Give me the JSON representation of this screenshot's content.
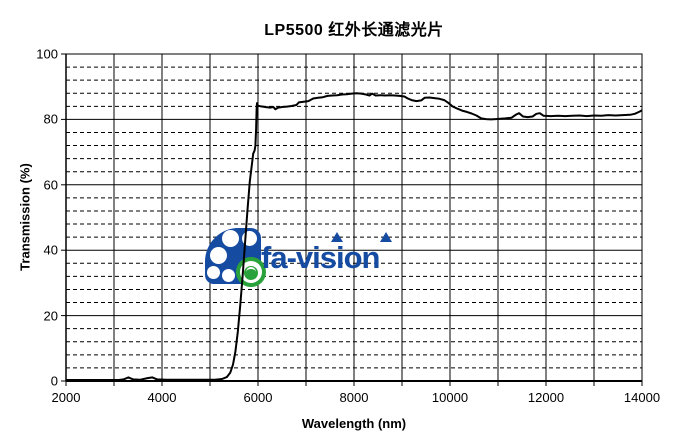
{
  "title": "LP5500 红外长通滤光片",
  "watermark": {
    "text": "fa-vision",
    "colors": {
      "blue": "#164ba2",
      "green": "#2aa23c"
    }
  },
  "chart_data": {
    "type": "line",
    "title": "LP5500 红外长通滤光片",
    "xlabel": "Wavelength (nm)",
    "ylabel": "Transmission (%)",
    "xlim": [
      2000,
      14000
    ],
    "ylim": [
      0,
      100
    ],
    "x_label_ticks": [
      {
        "value": 2000,
        "label": "2000"
      },
      {
        "value": 4000,
        "label": "4000"
      },
      {
        "value": 6000,
        "label": "6000"
      },
      {
        "value": 8000,
        "label": "8000"
      },
      {
        "value": 10000,
        "label": "10000"
      },
      {
        "value": 12000,
        "label": "12000"
      },
      {
        "value": 14000,
        "label": "14000"
      }
    ],
    "x_minor_step": 1000,
    "y_label_ticks": [
      {
        "value": 0,
        "label": "0"
      },
      {
        "value": 20,
        "label": "20"
      },
      {
        "value": 40,
        "label": "40"
      },
      {
        "value": 60,
        "label": "60"
      },
      {
        "value": 80,
        "label": "80"
      },
      {
        "value": 100,
        "label": "100"
      }
    ],
    "y_major_step": 20,
    "y_minor_step": 4,
    "grid": {
      "x_solid_every_nm": 1000,
      "y_solid_every": 20,
      "y_dashed_every": 4
    },
    "line_color": "#000000",
    "series": [
      {
        "name": "transmission",
        "points": [
          [
            2000,
            0.3
          ],
          [
            2400,
            0.3
          ],
          [
            2800,
            0.3
          ],
          [
            3100,
            0.3
          ],
          [
            3200,
            0.5
          ],
          [
            3300,
            1.1
          ],
          [
            3400,
            0.5
          ],
          [
            3550,
            0.4
          ],
          [
            3700,
            0.9
          ],
          [
            3800,
            1.1
          ],
          [
            3900,
            0.5
          ],
          [
            4100,
            0.4
          ],
          [
            4400,
            0.4
          ],
          [
            4800,
            0.4
          ],
          [
            5100,
            0.4
          ],
          [
            5250,
            0.6
          ],
          [
            5350,
            1.2
          ],
          [
            5420,
            2.5
          ],
          [
            5480,
            5
          ],
          [
            5530,
            9
          ],
          [
            5580,
            15
          ],
          [
            5630,
            23
          ],
          [
            5680,
            32
          ],
          [
            5730,
            42
          ],
          [
            5780,
            52
          ],
          [
            5830,
            61
          ],
          [
            5870,
            66
          ],
          [
            5900,
            69.5
          ],
          [
            5930,
            70.5
          ],
          [
            5945,
            72
          ],
          [
            5960,
            77
          ],
          [
            5970,
            83
          ],
          [
            5980,
            85
          ],
          [
            6000,
            84.2
          ],
          [
            6050,
            84
          ],
          [
            6150,
            83.8
          ],
          [
            6250,
            83.6
          ],
          [
            6320,
            83.8
          ],
          [
            6360,
            83.1
          ],
          [
            6420,
            83.6
          ],
          [
            6500,
            83.8
          ],
          [
            6600,
            83.9
          ],
          [
            6700,
            84.1
          ],
          [
            6800,
            84.4
          ],
          [
            6850,
            85.2
          ],
          [
            6950,
            85.4
          ],
          [
            7050,
            85.6
          ],
          [
            7150,
            86.4
          ],
          [
            7250,
            86.6
          ],
          [
            7350,
            86.8
          ],
          [
            7450,
            87.2
          ],
          [
            7550,
            87.3
          ],
          [
            7650,
            87.4
          ],
          [
            7750,
            87.6
          ],
          [
            7850,
            87.7
          ],
          [
            7950,
            87.9
          ],
          [
            8050,
            88
          ],
          [
            8150,
            87.9
          ],
          [
            8250,
            87.6
          ],
          [
            8320,
            87.3
          ],
          [
            8380,
            87.9
          ],
          [
            8450,
            87.3
          ],
          [
            8550,
            87.4
          ],
          [
            8650,
            87.3
          ],
          [
            8750,
            87.4
          ],
          [
            8850,
            87.3
          ],
          [
            8950,
            87.2
          ],
          [
            9050,
            87
          ],
          [
            9120,
            86.4
          ],
          [
            9200,
            85.9
          ],
          [
            9300,
            85.6
          ],
          [
            9400,
            85.8
          ],
          [
            9470,
            86.6
          ],
          [
            9570,
            86.7
          ],
          [
            9670,
            86.5
          ],
          [
            9780,
            86.3
          ],
          [
            9880,
            85.9
          ],
          [
            9960,
            85.1
          ],
          [
            10050,
            84
          ],
          [
            10150,
            83.3
          ],
          [
            10250,
            82.7
          ],
          [
            10350,
            82.3
          ],
          [
            10450,
            81.8
          ],
          [
            10550,
            81.2
          ],
          [
            10650,
            80.3
          ],
          [
            10750,
            80.1
          ],
          [
            10850,
            80
          ],
          [
            10950,
            80.1
          ],
          [
            11050,
            80.2
          ],
          [
            11150,
            80.3
          ],
          [
            11280,
            80.5
          ],
          [
            11380,
            81.5
          ],
          [
            11440,
            81.9
          ],
          [
            11520,
            80.9
          ],
          [
            11620,
            80.7
          ],
          [
            11720,
            80.9
          ],
          [
            11800,
            81.7
          ],
          [
            11870,
            81.9
          ],
          [
            11950,
            81.1
          ],
          [
            12100,
            81
          ],
          [
            12250,
            81.1
          ],
          [
            12400,
            81
          ],
          [
            12550,
            81.1
          ],
          [
            12700,
            81.2
          ],
          [
            12850,
            81
          ],
          [
            13000,
            81.2
          ],
          [
            13150,
            81.1
          ],
          [
            13300,
            81.3
          ],
          [
            13450,
            81.2
          ],
          [
            13600,
            81.3
          ],
          [
            13750,
            81.4
          ],
          [
            13850,
            81.7
          ],
          [
            13950,
            82.4
          ],
          [
            14000,
            82.8
          ]
        ]
      }
    ]
  }
}
